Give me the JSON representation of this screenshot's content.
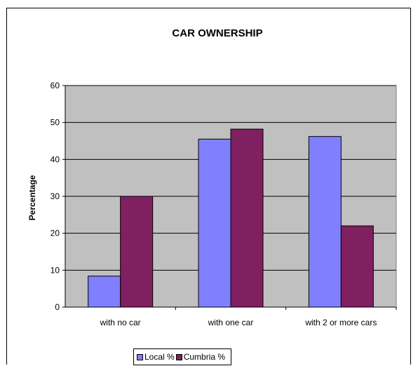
{
  "chart_data": {
    "type": "bar",
    "title": "CAR OWNERSHIP",
    "xlabel": "",
    "ylabel": "Percentage",
    "categories": [
      "with no car",
      "with one car",
      "with 2 or more cars"
    ],
    "series": [
      {
        "name": "Local %",
        "values": [
          8.4,
          45.5,
          46.2
        ],
        "color": "#8080ff"
      },
      {
        "name": "Cumbria %",
        "values": [
          30.0,
          48.2,
          22.0
        ],
        "color": "#802060"
      }
    ],
    "ylim": [
      0,
      60
    ],
    "yticks": [
      0,
      10,
      20,
      30,
      40,
      50,
      60
    ],
    "grid": true,
    "plot_background": "#c0c0c0",
    "legend_position": "bottom"
  }
}
